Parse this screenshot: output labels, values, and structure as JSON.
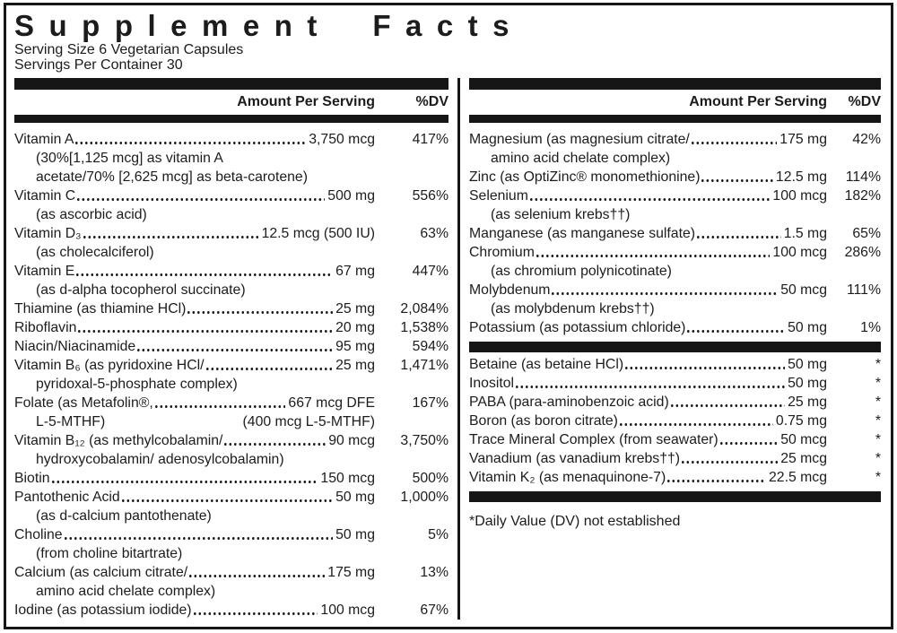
{
  "title": "Supplement Facts",
  "serving": {
    "size_line": "Serving Size 6 Vegetarian Capsules",
    "per_container_line": "Servings Per Container 30"
  },
  "column_header": {
    "amount": "Amount Per Serving",
    "dv": "%DV"
  },
  "footnote": "*Daily Value (DV) not established",
  "colors": {
    "ink": "#1c1c1c",
    "background": "#ffffff"
  },
  "columns": [
    {
      "sections": [
        {
          "rows": [
            {
              "name": "Vitamin A",
              "amount": "3,750 mcg",
              "dv": "417%",
              "sub": [
                {
                  "text": "(30%[1,125 mcg] as vitamin A"
                },
                {
                  "text": "acetate/70% [2,625 mcg] as beta-carotene)"
                }
              ]
            },
            {
              "name": "Vitamin C",
              "amount": "500 mg",
              "dv": "556%",
              "sub": [
                {
                  "text": "(as ascorbic acid)"
                }
              ]
            },
            {
              "name": "Vitamin D₃",
              "amount": "12.5 mcg (500 IU)",
              "dv": "63%",
              "sub": [
                {
                  "text": "(as cholecalciferol)"
                }
              ]
            },
            {
              "name": "Vitamin E",
              "amount": "67 mg",
              "dv": "447%",
              "sub": [
                {
                  "text": "(as d-alpha tocopherol succinate)"
                }
              ]
            },
            {
              "name": "Thiamine (as thiamine HCl)",
              "amount": "25 mg",
              "dv": "2,084%"
            },
            {
              "name": "Riboflavin",
              "amount": "20 mg",
              "dv": "1,538%"
            },
            {
              "name": "Niacin/Niacinamide",
              "amount": "95 mg",
              "dv": "594%"
            },
            {
              "name": "Vitamin B₆ (as pyridoxine HCl/",
              "amount": "25 mg",
              "dv": "1,471%",
              "sub": [
                {
                  "text": "pyridoxal-5-phosphate complex)"
                }
              ]
            },
            {
              "name": "Folate (as Metafolin®,",
              "amount": "667 mcg DFE",
              "dv": "167%",
              "sub": [
                {
                  "text": "L-5-MTHF)",
                  "right": "(400 mcg L-5-MTHF)"
                }
              ]
            },
            {
              "name": "Vitamin B₁₂ (as methylcobalamin/",
              "amount": "90 mcg",
              "dv": "3,750%",
              "sub": [
                {
                  "text": "hydroxycobalamin/ adenosylcobalamin)"
                }
              ]
            },
            {
              "name": "Biotin",
              "amount": "150 mcg",
              "dv": "500%"
            },
            {
              "name": "Pantothenic Acid",
              "amount": "50 mg",
              "dv": "1,000%",
              "sub": [
                {
                  "text": "(as d-calcium pantothenate)"
                }
              ]
            },
            {
              "name": "Choline",
              "amount": "50 mg",
              "dv": "5%",
              "sub": [
                {
                  "text": "(from choline bitartrate)"
                }
              ]
            },
            {
              "name": "Calcium (as calcium citrate/",
              "amount": "175 mg",
              "dv": "13%",
              "sub": [
                {
                  "text": "amino acid chelate complex)"
                }
              ]
            },
            {
              "name": "Iodine (as potassium iodide)",
              "amount": "100 mcg",
              "dv": "67%"
            }
          ]
        }
      ]
    },
    {
      "sections": [
        {
          "rows": [
            {
              "name": "Magnesium (as magnesium citrate/",
              "amount": "175 mg",
              "dv": "42%",
              "sub": [
                {
                  "text": "amino acid chelate complex)"
                }
              ]
            },
            {
              "name": "Zinc (as OptiZinc® monomethionine)",
              "amount": "12.5 mg",
              "dv": "114%"
            },
            {
              "name": "Selenium",
              "amount": "100 mcg",
              "dv": "182%",
              "sub": [
                {
                  "text": "(as selenium krebs††)"
                }
              ]
            },
            {
              "name": "Manganese (as manganese sulfate)",
              "amount": "1.5 mg",
              "dv": "65%"
            },
            {
              "name": "Chromium",
              "amount": "100 mcg",
              "dv": "286%",
              "sub": [
                {
                  "text": "(as chromium polynicotinate)"
                }
              ]
            },
            {
              "name": "Molybdenum",
              "amount": "50 mcg",
              "dv": "111%",
              "sub": [
                {
                  "text": "(as molybdenum krebs††)"
                }
              ]
            },
            {
              "name": "Potassium (as potassium chloride)",
              "amount": "50 mg",
              "dv": "1%"
            }
          ]
        },
        {
          "rows": [
            {
              "name": "Betaine (as betaine HCl)",
              "amount": "50 mg",
              "dv": "*"
            },
            {
              "name": "Inositol",
              "amount": "50 mg",
              "dv": "*"
            },
            {
              "name": "PABA (para-aminobenzoic acid)",
              "amount": "25 mg",
              "dv": "*"
            },
            {
              "name": "Boron (as boron citrate)",
              "amount": "0.75 mg",
              "dv": "*"
            },
            {
              "name": "Trace Mineral Complex (from seawater)",
              "amount": "50 mcg",
              "dv": "*"
            },
            {
              "name": "Vanadium (as vanadium krebs††)",
              "amount": "25 mcg",
              "dv": "*"
            },
            {
              "name": "Vitamin K₂ (as menaquinone-7)",
              "amount": "22.5 mcg",
              "dv": "*"
            }
          ]
        }
      ]
    }
  ]
}
